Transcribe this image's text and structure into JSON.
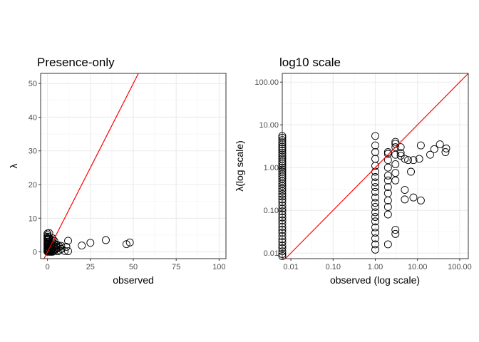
{
  "chart_data": [
    {
      "type": "scatter",
      "title": "Presence-only",
      "xlabel": "observed",
      "ylabel": "λ",
      "xlim": [
        -4,
        104
      ],
      "ylim": [
        -2,
        53
      ],
      "xticks": [
        0,
        25,
        50,
        75,
        100
      ],
      "yticks": [
        0,
        10,
        20,
        30,
        40,
        50
      ],
      "grid": true,
      "legend": "none",
      "reference_line": {
        "slope": 1,
        "intercept": 0,
        "color": "#ff0000"
      },
      "points": [
        [
          0,
          5.5
        ],
        [
          0,
          5.0
        ],
        [
          0,
          4.5
        ],
        [
          0,
          4.0
        ],
        [
          0,
          3.5
        ],
        [
          0,
          3.0
        ],
        [
          0,
          2.6
        ],
        [
          0,
          2.2
        ],
        [
          0,
          1.8
        ],
        [
          0,
          1.4
        ],
        [
          0,
          1.0
        ],
        [
          0,
          0.7
        ],
        [
          0,
          0.4
        ],
        [
          0,
          0.2
        ],
        [
          0,
          0.05
        ],
        [
          0.3,
          3.8
        ],
        [
          0.3,
          2.4
        ],
        [
          0.3,
          1.1
        ],
        [
          0.3,
          0.5
        ],
        [
          0.6,
          4.4
        ],
        [
          0.6,
          2.9
        ],
        [
          0.6,
          1.6
        ],
        [
          0.6,
          0.3
        ],
        [
          1,
          5.6
        ],
        [
          1,
          4.2
        ],
        [
          1,
          3.1
        ],
        [
          1,
          2.3
        ],
        [
          1,
          1.5
        ],
        [
          1,
          0.9
        ],
        [
          1,
          0.5
        ],
        [
          1,
          0.2
        ],
        [
          1,
          0.05
        ],
        [
          2,
          2.3
        ],
        [
          2,
          2.0
        ],
        [
          2,
          1.5
        ],
        [
          2,
          1.0
        ],
        [
          2,
          0.6
        ],
        [
          2,
          0.3
        ],
        [
          2,
          0.1
        ],
        [
          2,
          0.02
        ],
        [
          3,
          4.0
        ],
        [
          3,
          3.5
        ],
        [
          3,
          2.8
        ],
        [
          3,
          2.0
        ],
        [
          3,
          1.2
        ],
        [
          3,
          0.7
        ],
        [
          3,
          0.2
        ],
        [
          3,
          0.05
        ],
        [
          4,
          3.2
        ],
        [
          4,
          2.4
        ],
        [
          4,
          1.6
        ],
        [
          4,
          0.8
        ],
        [
          4,
          0.3
        ],
        [
          5,
          2.2
        ],
        [
          5,
          1.5
        ],
        [
          5,
          0.9
        ],
        [
          6,
          2.0
        ],
        [
          6,
          1.2
        ],
        [
          6,
          0.2
        ],
        [
          7,
          1.6
        ],
        [
          7,
          0.5
        ],
        [
          8,
          0.9
        ],
        [
          8,
          1.8
        ],
        [
          10,
          0.3
        ],
        [
          11,
          1.5
        ],
        [
          12,
          0.2
        ],
        [
          12,
          3.3
        ],
        [
          20,
          1.9
        ],
        [
          25,
          2.7
        ],
        [
          34,
          3.5
        ],
        [
          46,
          2.3
        ],
        [
          48,
          2.8
        ]
      ]
    },
    {
      "type": "scatter",
      "title": "log10 scale",
      "xlabel": "observed (log scale)",
      "ylabel": "λ(log scale)",
      "xscale": "log10",
      "yscale": "log10",
      "xlim": [
        0.00625,
        160
      ],
      "ylim": [
        0.0074,
        160
      ],
      "xticks": [
        0.01,
        0.1,
        1,
        10,
        100
      ],
      "xticklabels": [
        "0.01",
        "0.10",
        "1.00",
        "10.00",
        "100.00"
      ],
      "yticks": [
        0.01,
        0.1,
        1,
        10,
        100
      ],
      "yticklabels": [
        "0.01",
        "0.10",
        "1.00",
        "10.00",
        "100.00"
      ],
      "grid": true,
      "legend": "none",
      "reference_line": {
        "slope": 1,
        "intercept": 0,
        "color": "#ff0000"
      },
      "points": [
        [
          1,
          5.5
        ],
        [
          1,
          3.3
        ],
        [
          1,
          2.3
        ],
        [
          1,
          1.6
        ],
        [
          1,
          1.1
        ],
        [
          1,
          0.8
        ],
        [
          1,
          0.6
        ],
        [
          1,
          0.45
        ],
        [
          1,
          0.35
        ],
        [
          1,
          0.27
        ],
        [
          1,
          0.2
        ],
        [
          1,
          0.15
        ],
        [
          1,
          0.12
        ],
        [
          1,
          0.09
        ],
        [
          1,
          0.07
        ],
        [
          1,
          0.055
        ],
        [
          1,
          0.04
        ],
        [
          1,
          0.03
        ],
        [
          1,
          0.022
        ],
        [
          1,
          0.016
        ],
        [
          1,
          0.012
        ],
        [
          2,
          2.3
        ],
        [
          2,
          2.1
        ],
        [
          2,
          1.5
        ],
        [
          2,
          1.0
        ],
        [
          2,
          0.65
        ],
        [
          2,
          0.5
        ],
        [
          2,
          0.35
        ],
        [
          2,
          0.25
        ],
        [
          2,
          0.17
        ],
        [
          2,
          0.12
        ],
        [
          2,
          0.08
        ],
        [
          2,
          0.016
        ],
        [
          3,
          4.0
        ],
        [
          3,
          3.6
        ],
        [
          3,
          3.0
        ],
        [
          3,
          2.0
        ],
        [
          3,
          1.2
        ],
        [
          3,
          0.75
        ],
        [
          3,
          0.5
        ],
        [
          3,
          0.035
        ],
        [
          3,
          0.028
        ],
        [
          4,
          3.0
        ],
        [
          4,
          2.2
        ],
        [
          4,
          1.9
        ],
        [
          5,
          0.3
        ],
        [
          5,
          0.18
        ],
        [
          5,
          1.6
        ],
        [
          6,
          1.5
        ],
        [
          7,
          0.8
        ],
        [
          8,
          1.5
        ],
        [
          8,
          0.2
        ],
        [
          11,
          1.6
        ],
        [
          12,
          0.17
        ],
        [
          12,
          3.3
        ],
        [
          20,
          2.0
        ],
        [
          25,
          2.7
        ],
        [
          34,
          3.5
        ],
        [
          46,
          2.3
        ],
        [
          48,
          2.8
        ]
      ],
      "x_zero_points_lambda": [
        5.5,
        5.0,
        4.4,
        3.9,
        3.5,
        3.1,
        2.8,
        2.5,
        2.2,
        2.0,
        1.8,
        1.6,
        1.4,
        1.25,
        1.1,
        1.0,
        0.9,
        0.8,
        0.7,
        0.62,
        0.55,
        0.48,
        0.42,
        0.37,
        0.32,
        0.28,
        0.24,
        0.21,
        0.18,
        0.155,
        0.13,
        0.11,
        0.095,
        0.08,
        0.068,
        0.058,
        0.049,
        0.041,
        0.035,
        0.03,
        0.025,
        0.021,
        0.018,
        0.015,
        0.013,
        0.011,
        0.0095,
        0.0085
      ]
    }
  ]
}
